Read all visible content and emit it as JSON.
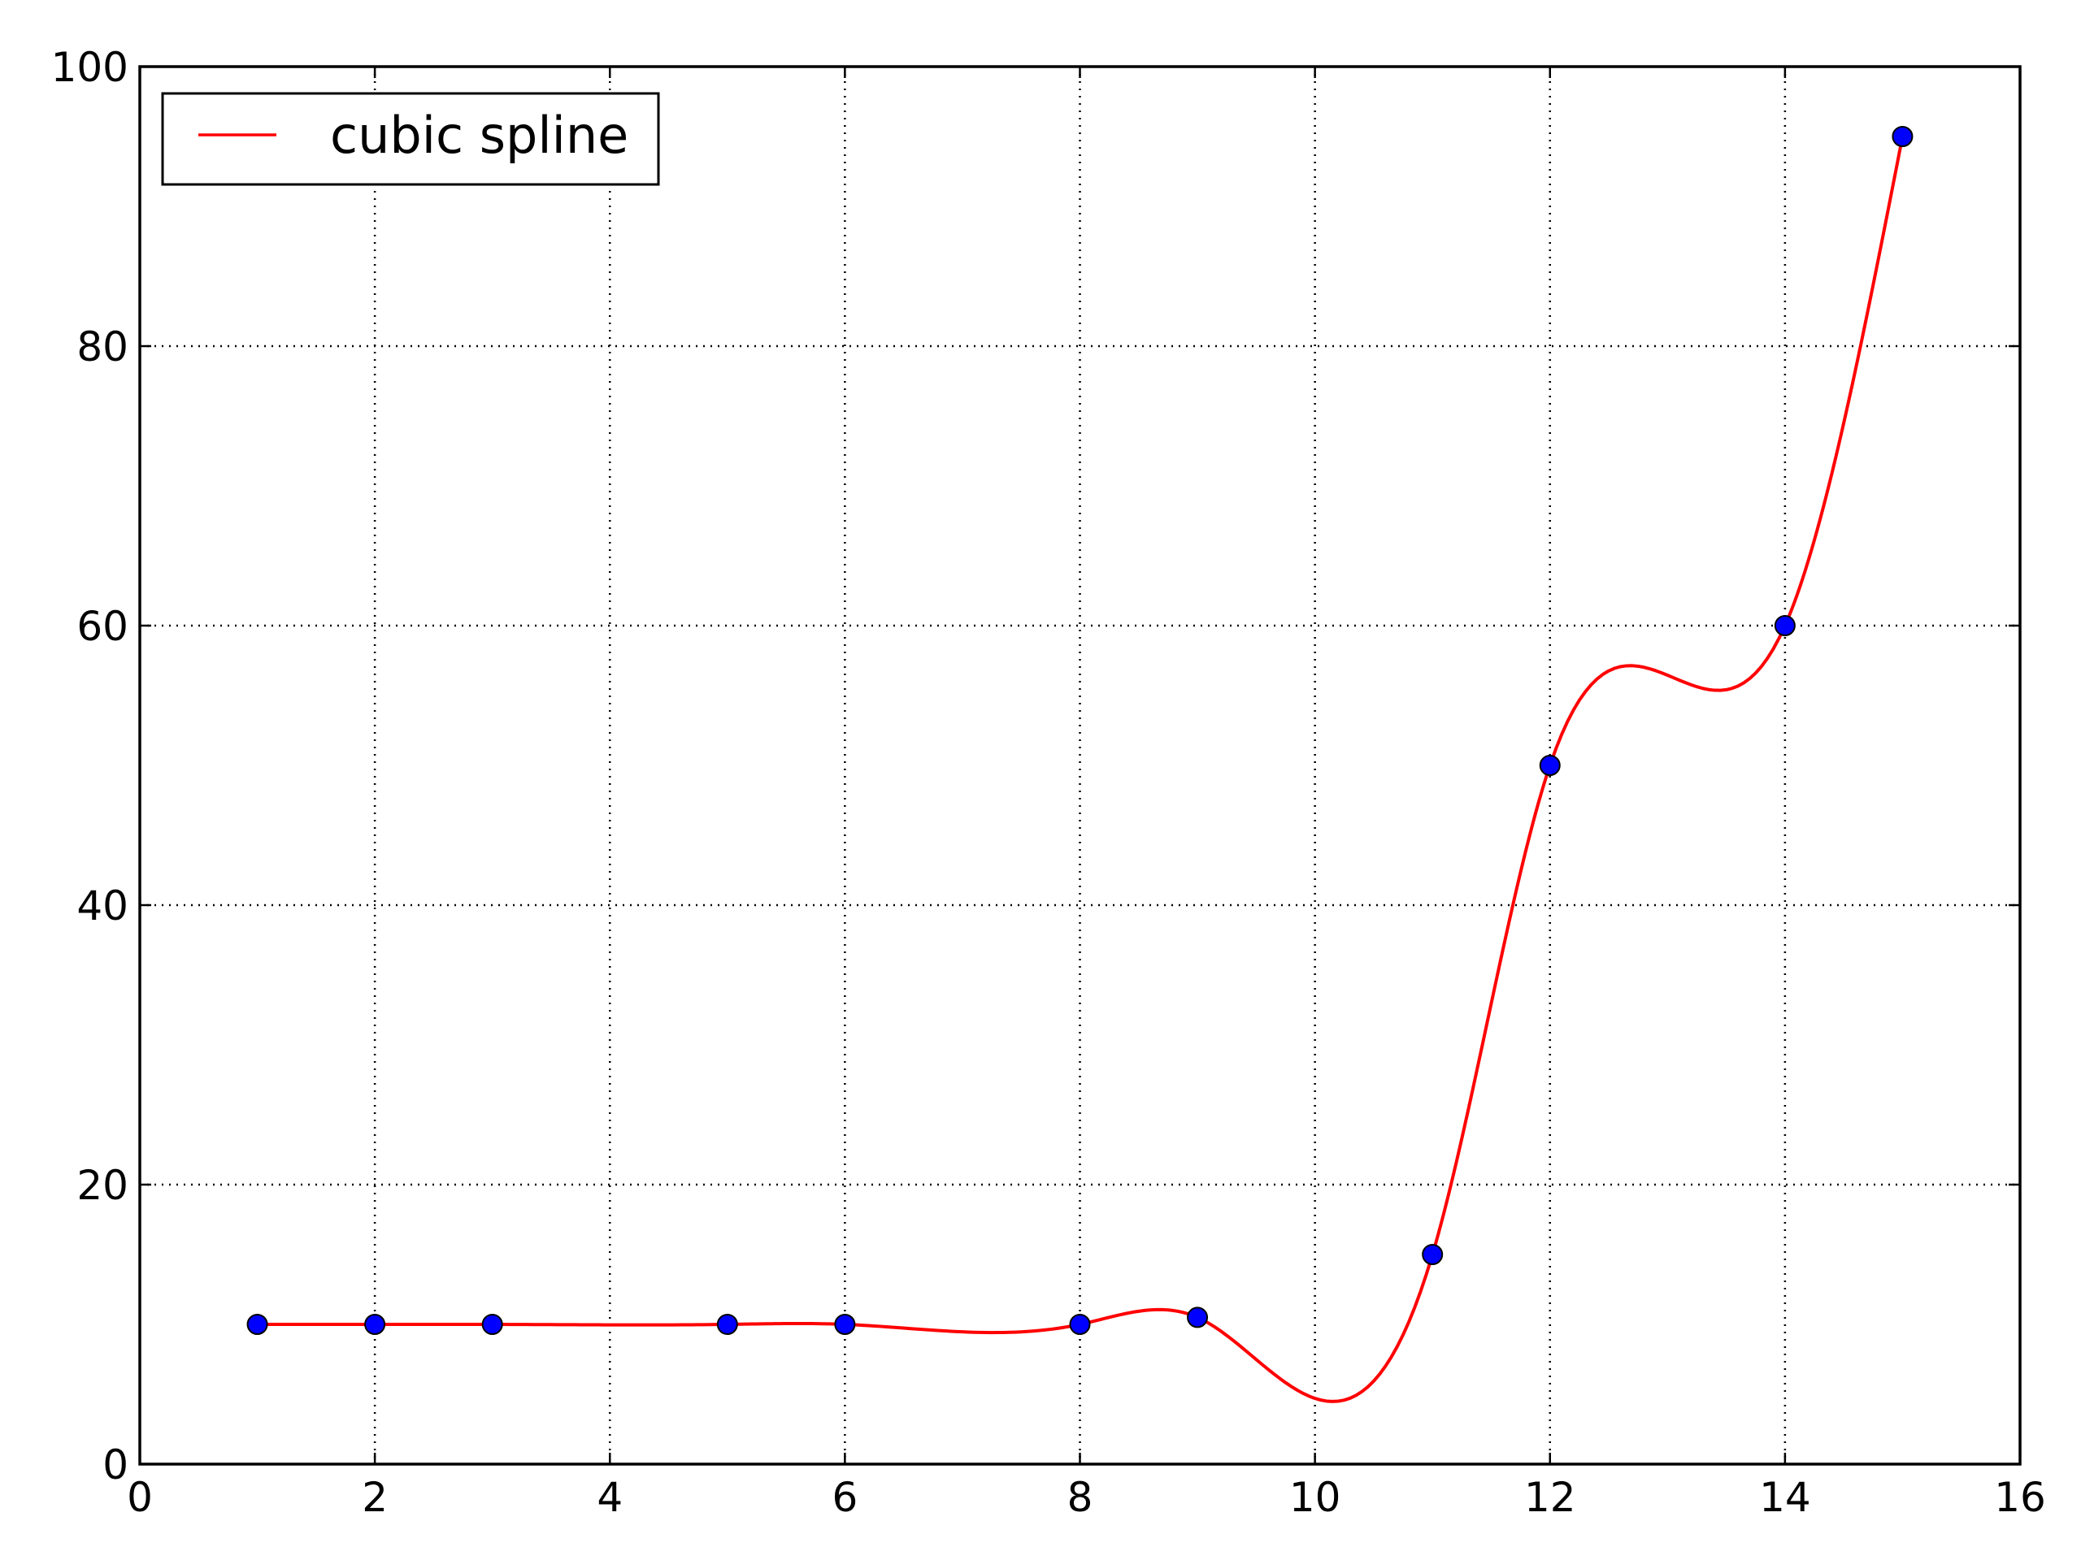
{
  "chart_data": {
    "type": "line",
    "title": "",
    "xlabel": "",
    "ylabel": "",
    "xlim": [
      0,
      16
    ],
    "ylim": [
      0,
      100
    ],
    "x_ticks": [
      0,
      2,
      4,
      6,
      8,
      10,
      12,
      14,
      16
    ],
    "y_ticks": [
      0,
      20,
      40,
      60,
      80,
      100
    ],
    "grid": true,
    "legend_position": "top-left",
    "colors": {
      "spline": "#ff0000",
      "points": "#0000ff",
      "point_edge": "#000000"
    },
    "points": {
      "x": [
        1,
        2,
        3,
        5,
        6,
        8,
        9,
        11,
        12,
        14,
        15
      ],
      "y": [
        10,
        10,
        10,
        10,
        10,
        10,
        10.5,
        15,
        50,
        60,
        95
      ]
    },
    "series": [
      {
        "name": "cubic spline",
        "kind": "line",
        "interpolation": "natural-cubic"
      }
    ]
  }
}
